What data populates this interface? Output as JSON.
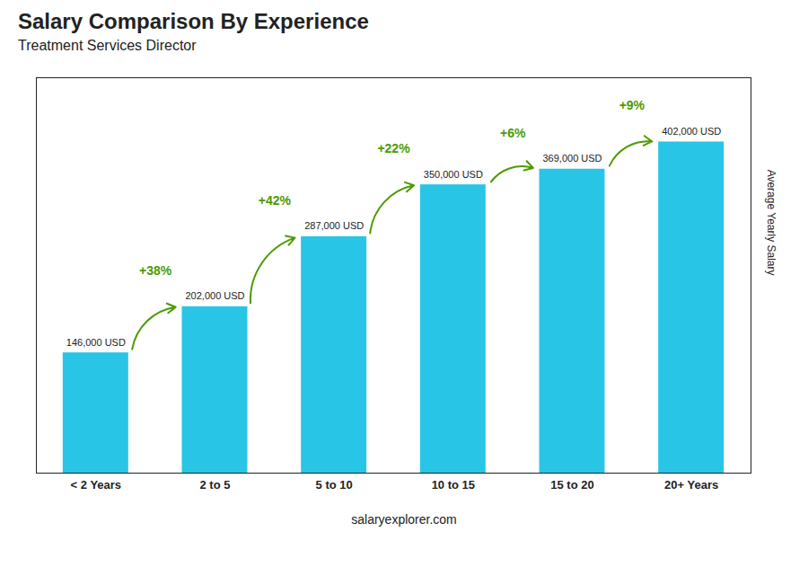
{
  "chart_data": {
    "type": "bar",
    "title": "Salary Comparison By Experience",
    "subtitle": "Treatment Services Director",
    "ylabel": "Average Yearly Salary",
    "footer": "salaryexplorer.com",
    "categories": [
      "< 2 Years",
      "2 to 5",
      "5 to 10",
      "10 to 15",
      "15 to 20",
      "20+ Years"
    ],
    "values": [
      146000,
      202000,
      287000,
      350000,
      369000,
      402000
    ],
    "value_labels": [
      "146,000 USD",
      "202,000 USD",
      "287,000 USD",
      "350,000 USD",
      "369,000 USD",
      "402,000 USD"
    ],
    "annotations": [
      "+38%",
      "+42%",
      "+22%",
      "+6%",
      "+9%"
    ],
    "color": "#29c5e6",
    "ylim": [
      0,
      480000
    ],
    "tick_labels": "x",
    "data_labels": true,
    "grid": false
  }
}
